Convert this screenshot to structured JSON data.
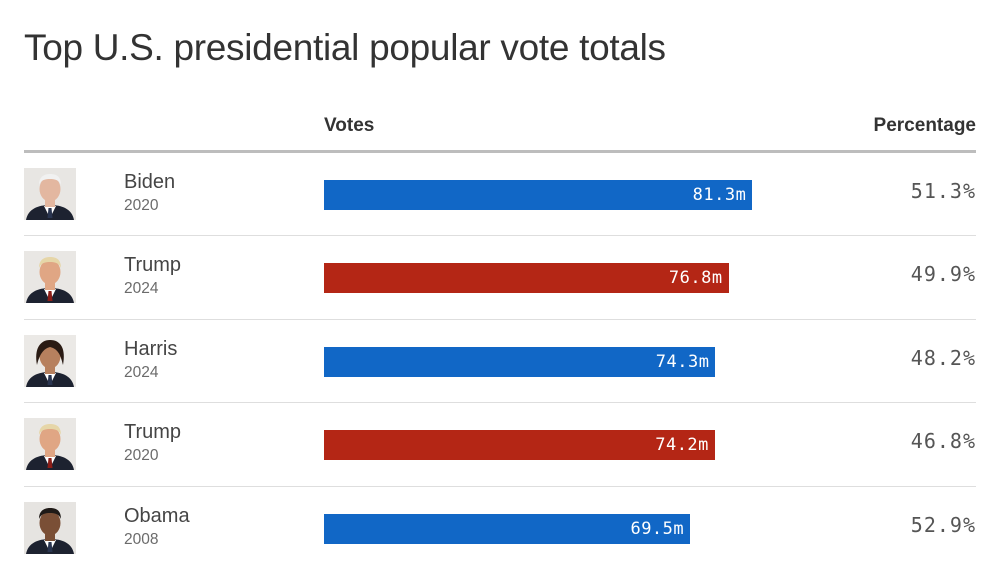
{
  "title": "Top U.S. presidential popular vote totals",
  "headers": {
    "votes": "Votes",
    "percentage": "Percentage"
  },
  "colors": {
    "democrat": "#1167c6",
    "republican": "#b42615"
  },
  "rows": [
    {
      "name": "Biden",
      "year": "2020",
      "votes_label": "81.3m",
      "pct_label": "51.3%",
      "party": "democrat",
      "portrait": "biden-portrait",
      "skin": "#e3b7a0",
      "hair": "#f1f1f1",
      "bg": "#e8e6e3"
    },
    {
      "name": "Trump",
      "year": "2024",
      "votes_label": "76.8m",
      "pct_label": "49.9%",
      "party": "republican",
      "portrait": "trump-portrait",
      "skin": "#e0a684",
      "hair": "#e6d6a8",
      "bg": "#e9e7e4"
    },
    {
      "name": "Harris",
      "year": "2024",
      "votes_label": "74.3m",
      "pct_label": "48.2%",
      "party": "democrat",
      "portrait": "harris-portrait",
      "skin": "#b7805e",
      "hair": "#2a1b14",
      "bg": "#ebe9e6"
    },
    {
      "name": "Trump",
      "year": "2020",
      "votes_label": "74.2m",
      "pct_label": "46.8%",
      "party": "republican",
      "portrait": "trump-portrait",
      "skin": "#e0a684",
      "hair": "#e6d6a8",
      "bg": "#e9e7e4"
    },
    {
      "name": "Obama",
      "year": "2008",
      "votes_label": "69.5m",
      "pct_label": "52.9%",
      "party": "democrat",
      "portrait": "obama-portrait",
      "skin": "#7a4f36",
      "hair": "#1f1a17",
      "bg": "#e6e4e1"
    }
  ],
  "chart_data": {
    "type": "bar",
    "orientation": "horizontal",
    "title": "Top U.S. presidential popular vote totals",
    "categories": [
      "Biden 2020",
      "Trump 2024",
      "Harris 2024",
      "Trump 2020",
      "Obama 2008"
    ],
    "series": [
      {
        "name": "Votes",
        "values": [
          81.3,
          76.8,
          74.3,
          74.2,
          69.5
        ]
      }
    ],
    "percentages": [
      51.3,
      49.9,
      48.2,
      46.8,
      52.9
    ],
    "bar_colors": [
      "#1167c6",
      "#b42615",
      "#1167c6",
      "#b42615",
      "#1167c6"
    ],
    "xlim": [
      0,
      180.7
    ],
    "xlabel": "",
    "ylabel": "",
    "grid": false,
    "legend": "none"
  }
}
